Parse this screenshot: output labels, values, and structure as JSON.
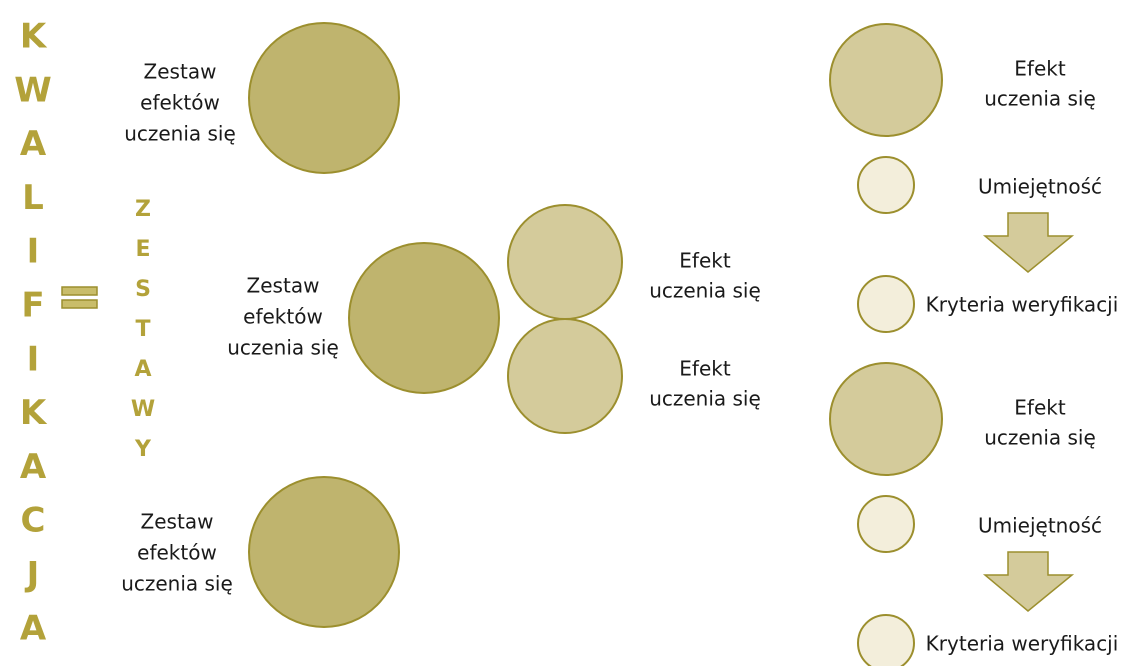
{
  "kwalifikacja": [
    "K",
    "W",
    "A",
    "L",
    "I",
    "F",
    "I",
    "K",
    "A",
    "C",
    "J",
    "A"
  ],
  "zestawy": [
    "Z",
    "E",
    "S",
    "T",
    "A",
    "W",
    "Y"
  ],
  "sets": [
    {
      "lines": [
        "Zestaw",
        "efektów",
        "uczenia się"
      ]
    },
    {
      "lines": [
        "Zestaw",
        "efektów",
        "uczenia się"
      ]
    },
    {
      "lines": [
        "Zestaw",
        "efektów",
        "uczenia się"
      ]
    }
  ],
  "middle_effects": [
    {
      "lines": [
        "Efekt",
        "uczenia się"
      ]
    },
    {
      "lines": [
        "Efekt",
        "uczenia się"
      ]
    }
  ],
  "right_groups": [
    {
      "effect": [
        "Efekt",
        "uczenia się"
      ],
      "skill": "Umiejętność",
      "criteria": "Kryteria weryfikacji"
    },
    {
      "effect": [
        "Efekt",
        "uczenia się"
      ],
      "skill": "Umiejętność",
      "criteria": "Kryteria weryfikacji"
    }
  ]
}
